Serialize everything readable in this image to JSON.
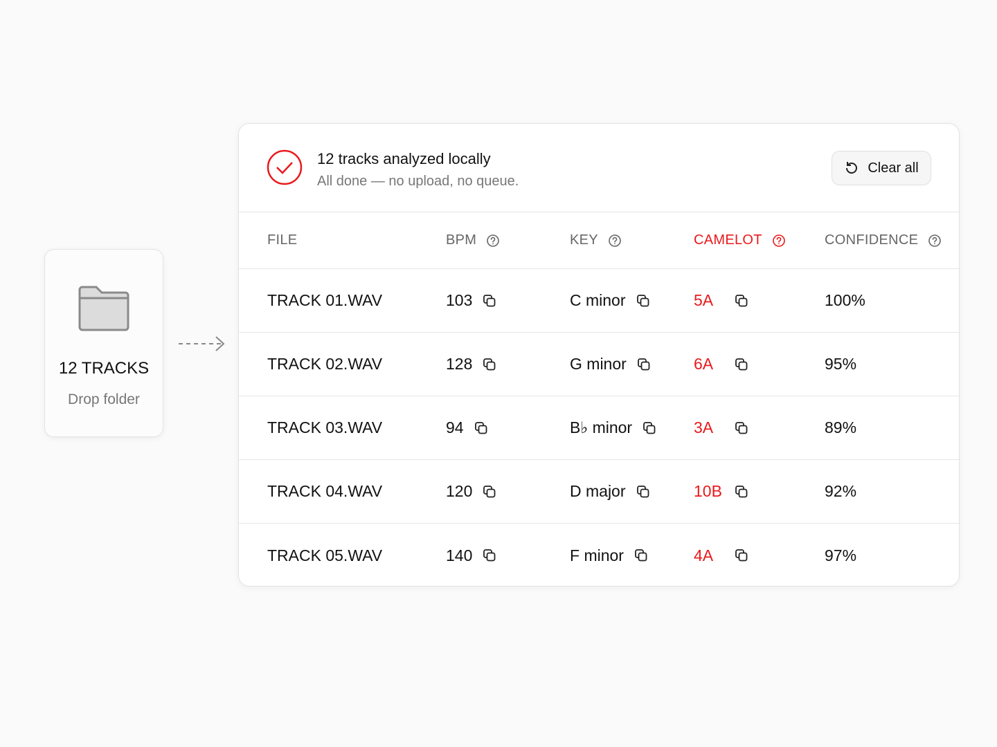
{
  "drop": {
    "title": "12 TRACKS",
    "subtitle": "Drop folder"
  },
  "status": {
    "title": "12 tracks analyzed locally",
    "subtitle": "All done — no upload, no queue.",
    "button": "Clear all"
  },
  "table": {
    "headers": [
      "FILE",
      "BPM",
      "KEY",
      "CAMELOT",
      "CONFIDENCE"
    ],
    "rows": [
      [
        "TRACK 01.WAV",
        "103",
        "C minor",
        "5A",
        "100%"
      ],
      [
        "TRACK 02.WAV",
        "128",
        "G minor",
        "6A",
        "95%"
      ],
      [
        "TRACK 03.WAV",
        "94",
        "B♭ minor",
        "3A",
        "89%"
      ],
      [
        "TRACK 04.WAV",
        "120",
        "D major",
        "10B",
        "92%"
      ],
      [
        "TRACK 05.WAV",
        "140",
        "F minor",
        "4A",
        "97%"
      ]
    ]
  }
}
